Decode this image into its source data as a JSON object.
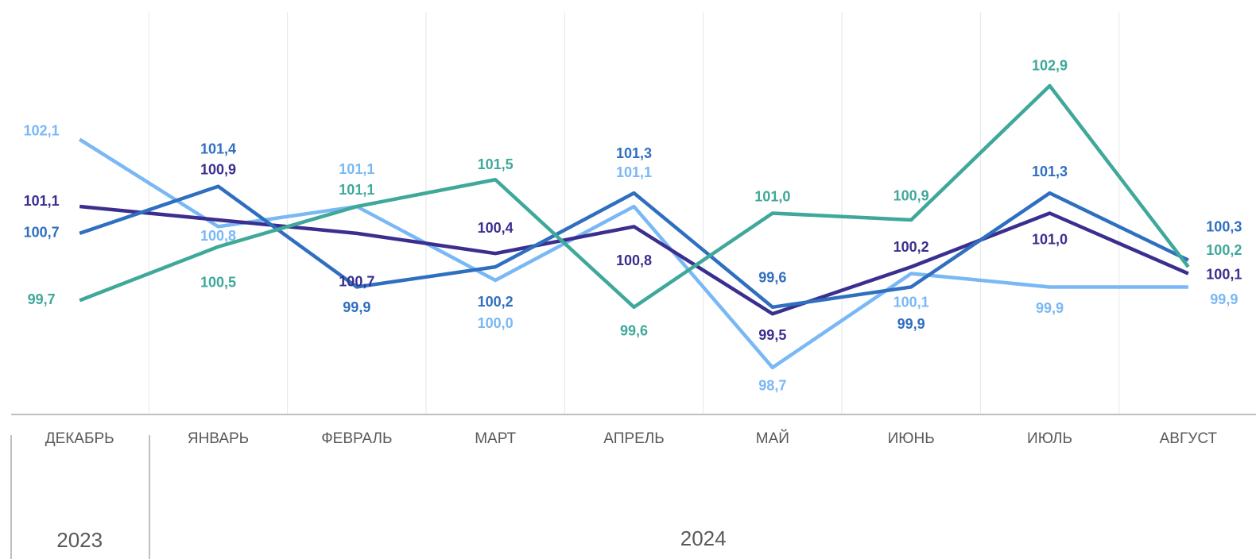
{
  "chart_data": {
    "type": "line",
    "categories": [
      "ДЕКАБРЬ",
      "ЯНВАРЬ",
      "ФЕВРАЛЬ",
      "МАРТ",
      "АПРЕЛЬ",
      "МАЙ",
      "ИЮНЬ",
      "ИЮЛЬ",
      "АВГУСТ"
    ],
    "years": [
      "2023",
      "2024"
    ],
    "ylim": [
      98,
      104
    ],
    "series": [
      {
        "color": "#7ab8f5",
        "values": [
          102.1,
          100.8,
          101.1,
          100.0,
          101.1,
          98.7,
          100.1,
          99.9,
          99.9
        ],
        "value_labels": [
          "102,1",
          "100,8",
          "101,1",
          "100,0",
          "101,1",
          "98,7",
          "100,1",
          "99,9",
          "99,9"
        ]
      },
      {
        "color": "#3a2f8f",
        "values": [
          101.1,
          100.9,
          100.7,
          100.4,
          100.8,
          99.5,
          100.2,
          101.0,
          100.1
        ],
        "value_labels": [
          "101,1",
          "100,9",
          "100,7",
          "100,4",
          "100,8",
          "99,5",
          "100,2",
          "101,0",
          "100,1"
        ]
      },
      {
        "color": "#2f6fc0",
        "values": [
          100.7,
          101.4,
          99.9,
          100.2,
          101.3,
          99.6,
          99.9,
          101.3,
          100.3
        ],
        "value_labels": [
          "100,7",
          "101,4",
          "99,9",
          "100,2",
          "101,3",
          "99,6",
          "99,9",
          "101,3",
          "100,3"
        ]
      },
      {
        "color": "#3fa89a",
        "values": [
          99.7,
          100.5,
          101.1,
          101.5,
          99.6,
          101.0,
          100.9,
          102.9,
          100.2
        ],
        "value_labels": [
          "99,7",
          "100,5",
          "101,1",
          "101,5",
          "99,6",
          "101,0",
          "100,9",
          "102,9",
          "100,2"
        ]
      }
    ]
  }
}
